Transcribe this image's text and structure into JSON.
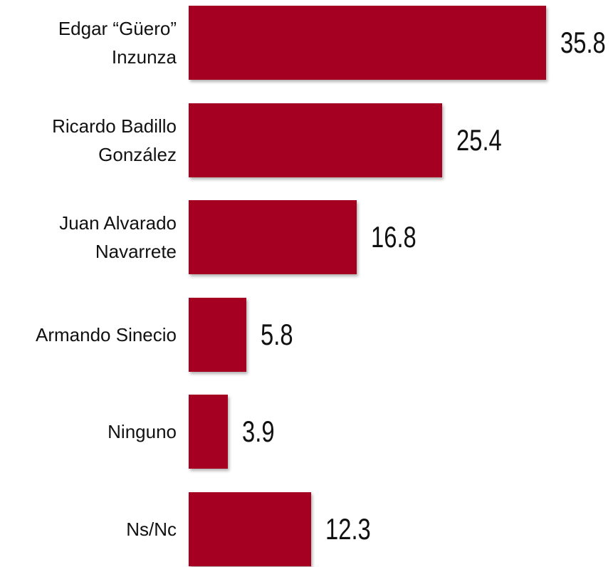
{
  "chart_data": {
    "type": "bar",
    "orientation": "horizontal",
    "categories": [
      "Edgar “Güero” Inzunza",
      "Ricardo Badillo González",
      "Juan Alvarado Navarrete",
      "Armando Sinecio",
      "Ninguno",
      "Ns/Nc"
    ],
    "values": [
      35.8,
      25.4,
      16.8,
      5.8,
      3.9,
      12.3
    ],
    "color": "#a50021"
  }
}
